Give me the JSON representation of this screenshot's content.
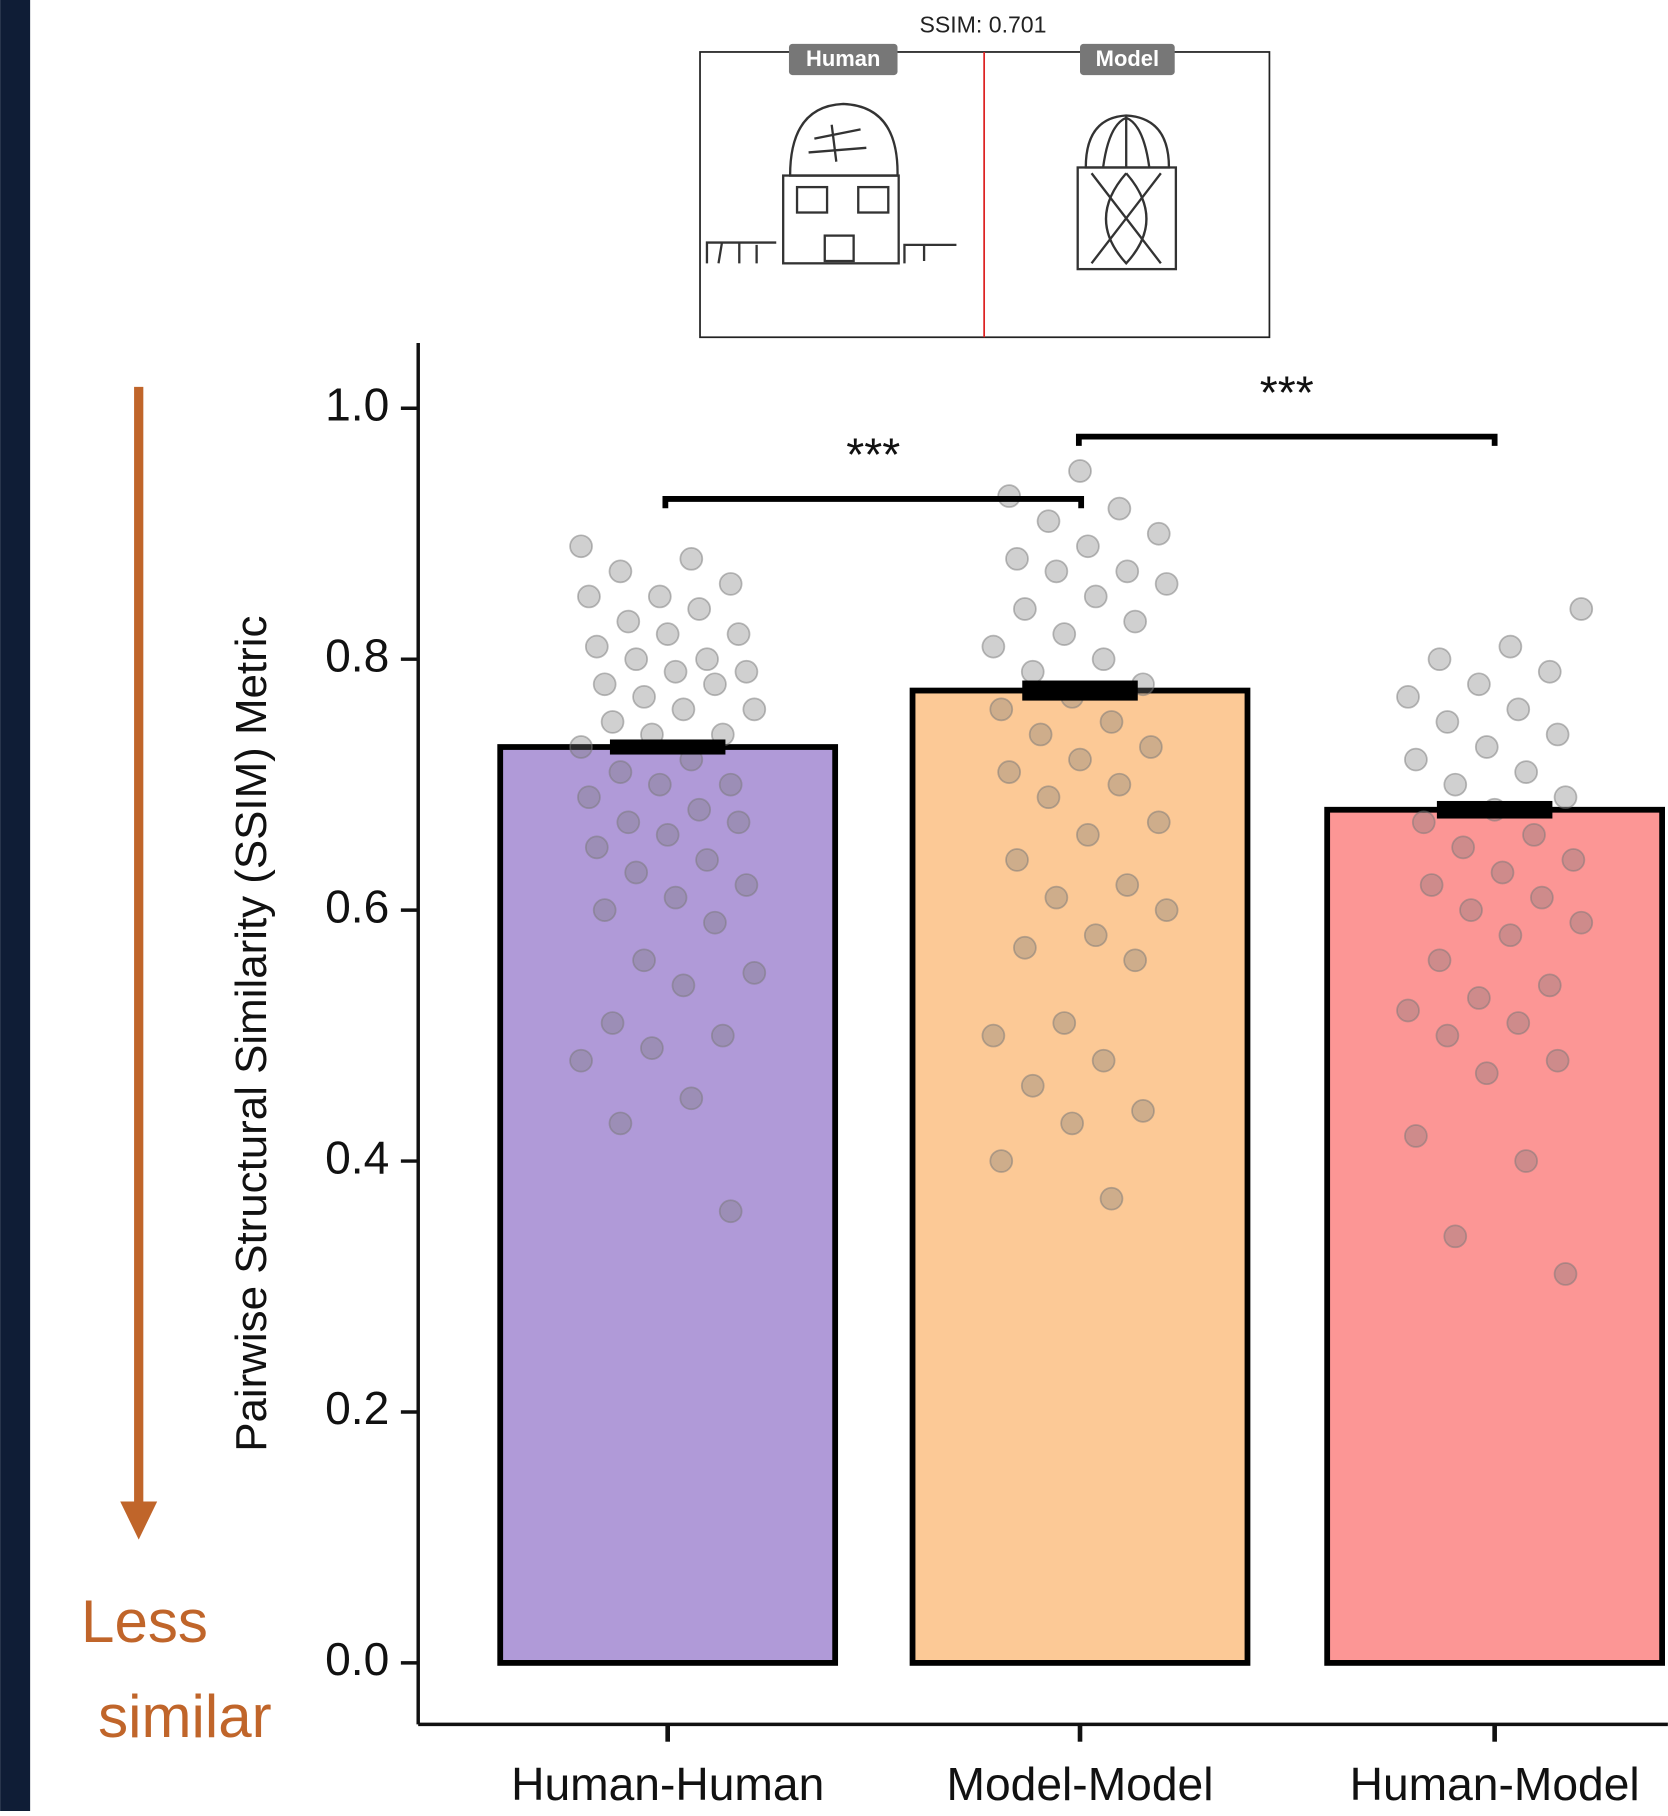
{
  "chart_data": {
    "type": "bar",
    "y_label": "Pairwise Structural Similarity (SSIM) Metric",
    "categories": [
      "Human-Human",
      "Model-Model",
      "Human-Model"
    ],
    "values": [
      0.73,
      0.775,
      0.68
    ],
    "errors": [
      0.006,
      0.008,
      0.007
    ],
    "colors": [
      "#b09ad8",
      "#fcc996",
      "#fc9695"
    ],
    "points": [
      [
        0.89,
        0.88,
        0.87,
        0.86,
        0.85,
        0.85,
        0.84,
        0.83,
        0.82,
        0.82,
        0.81,
        0.8,
        0.8,
        0.79,
        0.79,
        0.78,
        0.78,
        0.77,
        0.76,
        0.76,
        0.75,
        0.74,
        0.74,
        0.73,
        0.72,
        0.71,
        0.7,
        0.7,
        0.69,
        0.68,
        0.67,
        0.67,
        0.66,
        0.65,
        0.64,
        0.63,
        0.62,
        0.61,
        0.6,
        0.59,
        0.56,
        0.55,
        0.54,
        0.51,
        0.5,
        0.49,
        0.48,
        0.45,
        0.43,
        0.36
      ],
      [
        0.95,
        0.93,
        0.92,
        0.91,
        0.9,
        0.89,
        0.88,
        0.87,
        0.87,
        0.86,
        0.85,
        0.84,
        0.83,
        0.82,
        0.81,
        0.8,
        0.79,
        0.78,
        0.77,
        0.76,
        0.75,
        0.74,
        0.73,
        0.72,
        0.71,
        0.7,
        0.69,
        0.67,
        0.66,
        0.64,
        0.62,
        0.61,
        0.6,
        0.58,
        0.57,
        0.56,
        0.51,
        0.5,
        0.48,
        0.46,
        0.44,
        0.43,
        0.4,
        0.37
      ],
      [
        0.84,
        0.81,
        0.8,
        0.79,
        0.78,
        0.77,
        0.76,
        0.75,
        0.74,
        0.73,
        0.72,
        0.71,
        0.7,
        0.69,
        0.68,
        0.67,
        0.66,
        0.65,
        0.64,
        0.63,
        0.62,
        0.61,
        0.6,
        0.59,
        0.58,
        0.56,
        0.54,
        0.53,
        0.52,
        0.51,
        0.5,
        0.48,
        0.47,
        0.42,
        0.4,
        0.34,
        0.31
      ]
    ],
    "ylim": [
      -0.049,
      1.052
    ],
    "yticks": [
      {
        "value": 0,
        "label": "0.0"
      },
      0.2,
      0.4,
      0.6,
      0.8,
      {
        "value": 1,
        "label": "1.0"
      }
    ],
    "annotations": [
      "***",
      "***"
    ],
    "arrow_label": [
      "Less",
      "similar"
    ],
    "arrow_color": "#c0652a",
    "inset": {
      "title": "SSIM: 0.701",
      "labels": [
        "Human",
        "Model"
      ]
    }
  }
}
